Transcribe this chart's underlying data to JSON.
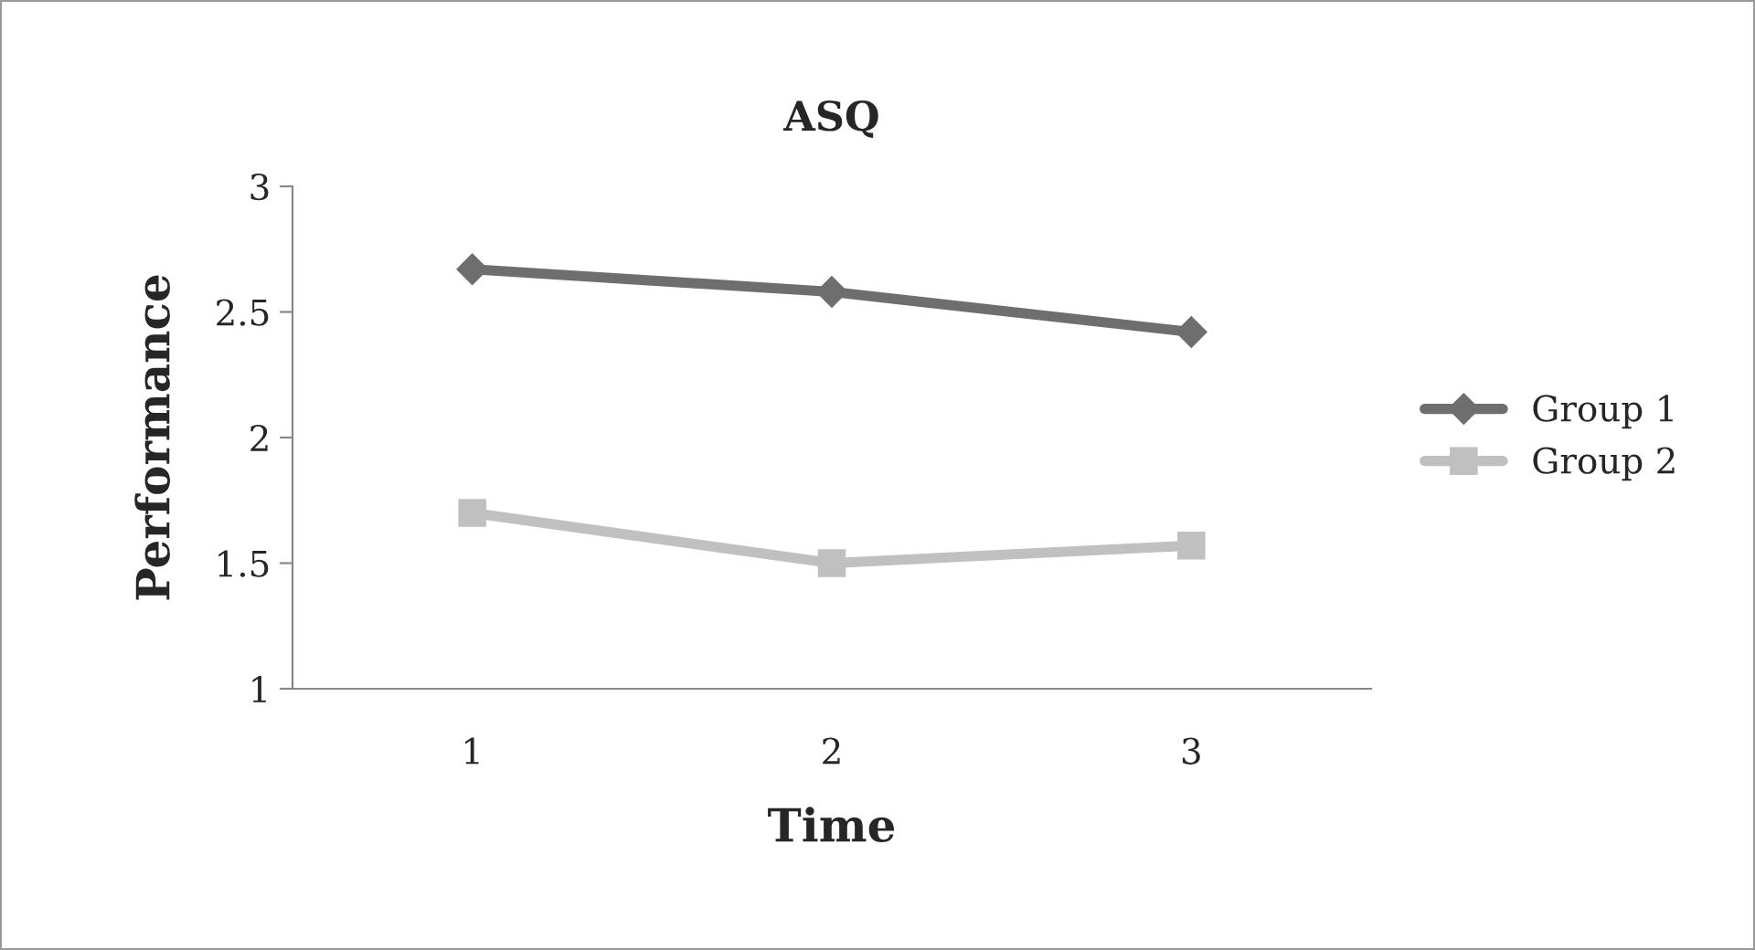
{
  "chart_data": {
    "type": "line",
    "title": "ASQ",
    "xlabel": "Time",
    "ylabel": "Performance",
    "categories": [
      "1",
      "2",
      "3"
    ],
    "series": [
      {
        "name": "Group 1",
        "color": "#6e6e6e",
        "marker": "diamond",
        "values": [
          2.67,
          2.58,
          2.42
        ]
      },
      {
        "name": "Group 2",
        "color": "#c0c0c0",
        "marker": "square",
        "values": [
          1.7,
          1.5,
          1.57
        ]
      }
    ],
    "ylim": [
      1,
      3
    ],
    "yticks": [
      1,
      1.5,
      2,
      2.5,
      3
    ],
    "grid": false,
    "legend": "right"
  }
}
